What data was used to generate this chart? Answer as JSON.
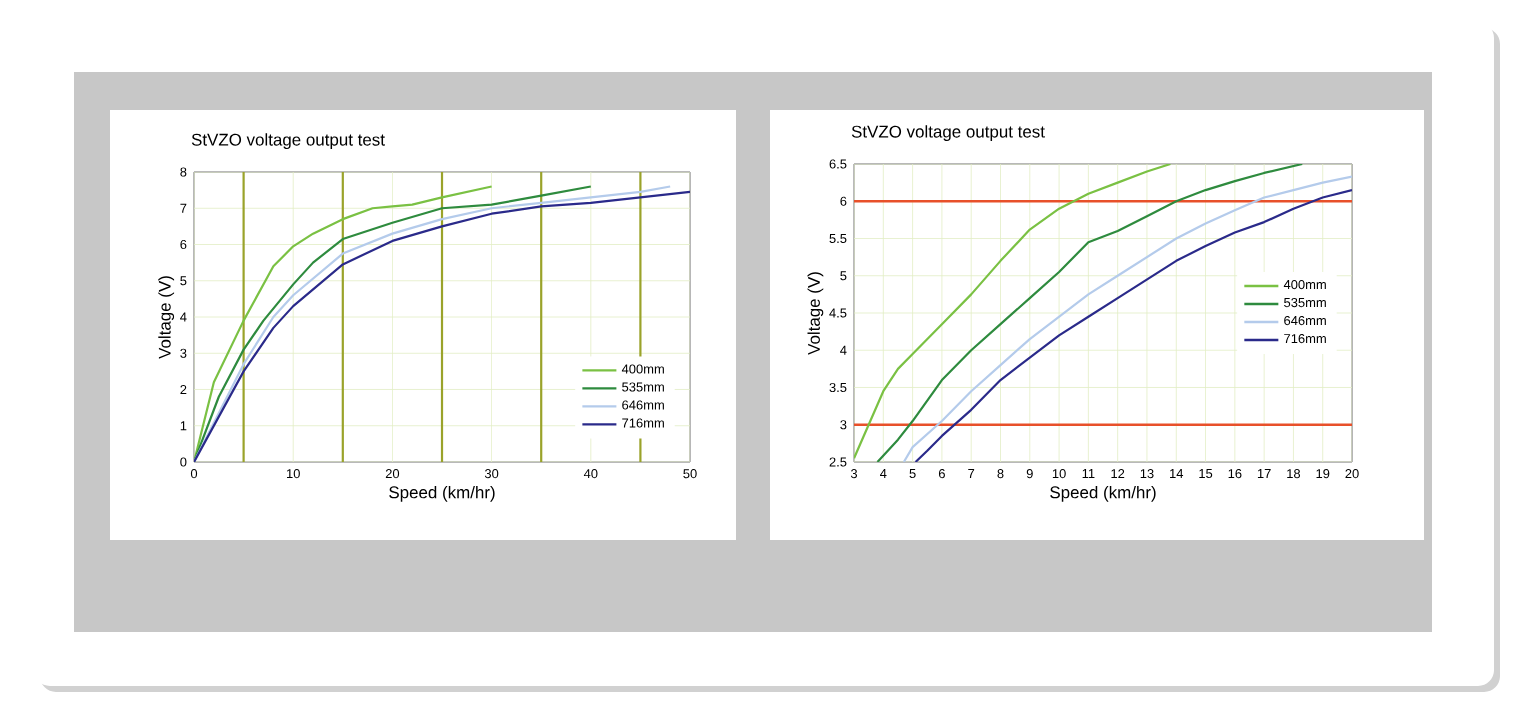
{
  "chart_data": [
    {
      "type": "line",
      "title": "StVZO voltage output test",
      "xlabel": "Speed (km/hr)",
      "ylabel": "Voltage (V)",
      "xlim": [
        0,
        50
      ],
      "ylim": [
        0,
        8
      ],
      "xticks": [
        0,
        10,
        20,
        30,
        40,
        50
      ],
      "yticks": [
        0,
        1,
        2,
        3,
        4,
        5,
        6,
        7,
        8
      ],
      "grid": true,
      "legend": "bottom right",
      "ref_lines": [
        {
          "axis": "x",
          "value": 5,
          "color": "#9aa32a"
        },
        {
          "axis": "x",
          "value": 15,
          "color": "#9aa32a"
        },
        {
          "axis": "x",
          "value": 25,
          "color": "#9aa32a"
        },
        {
          "axis": "x",
          "value": 35,
          "color": "#9aa32a"
        },
        {
          "axis": "x",
          "value": 45,
          "color": "#9aa32a"
        }
      ],
      "series": [
        {
          "name": "400mm",
          "color": "#7ac143",
          "x": [
            0,
            2,
            5,
            8,
            10,
            12,
            15,
            18,
            20,
            22,
            25,
            30
          ],
          "values": [
            0,
            2.2,
            3.9,
            5.4,
            5.95,
            6.3,
            6.7,
            7.0,
            7.05,
            7.1,
            7.3,
            7.6
          ]
        },
        {
          "name": "535mm",
          "color": "#2e8b3e",
          "x": [
            0,
            2.5,
            5,
            7,
            10,
            12,
            15,
            20,
            25,
            30,
            35,
            40
          ],
          "values": [
            0,
            1.8,
            3.1,
            3.9,
            4.9,
            5.5,
            6.15,
            6.6,
            7.0,
            7.1,
            7.35,
            7.6
          ]
        },
        {
          "name": "646mm",
          "color": "#b4cbeb",
          "x": [
            0,
            5,
            8,
            10,
            15,
            20,
            25,
            30,
            35,
            40,
            45,
            48
          ],
          "values": [
            0,
            2.7,
            4.0,
            4.6,
            5.75,
            6.3,
            6.7,
            7.0,
            7.15,
            7.3,
            7.45,
            7.6
          ]
        },
        {
          "name": "716mm",
          "color": "#2a2a8a",
          "x": [
            0,
            5,
            8,
            10,
            15,
            20,
            25,
            30,
            35,
            40,
            45,
            50
          ],
          "values": [
            0,
            2.5,
            3.7,
            4.3,
            5.45,
            6.1,
            6.5,
            6.85,
            7.05,
            7.15,
            7.3,
            7.45
          ]
        }
      ]
    },
    {
      "type": "line",
      "title": "StVZO voltage output test",
      "xlabel": "Speed (km/hr)",
      "ylabel": "Voltage (V)",
      "xlim": [
        3,
        20
      ],
      "ylim": [
        2.5,
        6.5
      ],
      "xticks": [
        3,
        4,
        5,
        6,
        7,
        8,
        9,
        10,
        11,
        12,
        13,
        14,
        15,
        16,
        17,
        18,
        19,
        20
      ],
      "yticks": [
        2.5,
        3,
        3.5,
        4,
        4.5,
        5,
        5.5,
        6,
        6.5
      ],
      "grid": true,
      "legend": "right",
      "ref_lines": [
        {
          "axis": "y",
          "value": 3,
          "color": "#e8502a"
        },
        {
          "axis": "y",
          "value": 6,
          "color": "#e8502a"
        }
      ],
      "series": [
        {
          "name": "400mm",
          "color": "#7ac143",
          "x": [
            3,
            3.5,
            4,
            4.5,
            5,
            6,
            7,
            8,
            9,
            10,
            11,
            12,
            13,
            13.8
          ],
          "values": [
            2.55,
            3.0,
            3.45,
            3.75,
            3.95,
            4.35,
            4.75,
            5.2,
            5.62,
            5.9,
            6.1,
            6.25,
            6.4,
            6.5
          ]
        },
        {
          "name": "535mm",
          "color": "#2e8b3e",
          "x": [
            3.8,
            4.5,
            5,
            6,
            7,
            8,
            9,
            10,
            11,
            12,
            13,
            14,
            15,
            16,
            17,
            18.3
          ],
          "values": [
            2.5,
            2.8,
            3.05,
            3.6,
            4.0,
            4.35,
            4.7,
            5.05,
            5.45,
            5.6,
            5.8,
            6.0,
            6.15,
            6.27,
            6.38,
            6.5
          ]
        },
        {
          "name": "646mm",
          "color": "#b4cbeb",
          "x": [
            4.7,
            5,
            6,
            7,
            8,
            9,
            10,
            11,
            12,
            13,
            14,
            15,
            16,
            17,
            18,
            19,
            20
          ],
          "values": [
            2.5,
            2.7,
            3.05,
            3.45,
            3.8,
            4.15,
            4.45,
            4.75,
            5.0,
            5.25,
            5.5,
            5.7,
            5.88,
            6.05,
            6.15,
            6.25,
            6.33
          ]
        },
        {
          "name": "716mm",
          "color": "#2a2a8a",
          "x": [
            5.1,
            5.5,
            6,
            7,
            8,
            9,
            10,
            11,
            12,
            13,
            14,
            15,
            16,
            17,
            18,
            19,
            20
          ],
          "values": [
            2.5,
            2.65,
            2.85,
            3.2,
            3.6,
            3.9,
            4.2,
            4.45,
            4.7,
            4.95,
            5.2,
            5.4,
            5.58,
            5.72,
            5.9,
            6.05,
            6.15
          ]
        }
      ]
    }
  ]
}
